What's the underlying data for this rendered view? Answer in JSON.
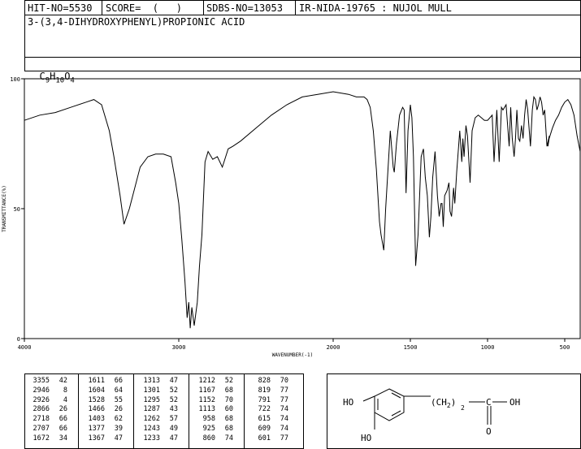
{
  "header": {
    "hit_no": "HIT-NO=5530",
    "score": "SCORE=  (   )",
    "sdbs_no": "SDBS-NO=13053",
    "source": "IR-NIDA-19765 : NUJOL MULL",
    "compound": "3-(3,4-DIHYDROXYPHENYL)PROPIONIC ACID",
    "formula_parts": {
      "c": "C",
      "c_n": "9",
      "h": "H",
      "h_n": "10",
      "o": "O",
      "o_n": "4"
    }
  },
  "chart_data": {
    "type": "line",
    "xlabel": "WAVENUMBER(-1)",
    "ylabel": "TRANSMITTANCE(%)",
    "xlim": [
      4000,
      400
    ],
    "ylim": [
      0,
      100
    ],
    "x_ticks": [
      4000,
      3000,
      2000,
      1500,
      1000,
      500
    ],
    "x_tick_labels": [
      "4000",
      "3000",
      "2000",
      "1500",
      "1000",
      "500"
    ],
    "y_ticks": [
      0,
      50,
      100
    ],
    "y_tick_labels": [
      "0",
      "50",
      "100"
    ],
    "series": [
      {
        "x": [
          4000,
          3900,
          3800,
          3700,
          3600,
          3550,
          3500,
          3450,
          3420,
          3380,
          3355,
          3320,
          3250,
          3200,
          3150,
          3100,
          3050,
          3020,
          3000,
          2980,
          2960,
          2946,
          2935,
          2926,
          2915,
          2900,
          2880,
          2866,
          2850,
          2830,
          2810,
          2780,
          2750,
          2718,
          2707,
          2680,
          2650,
          2600,
          2500,
          2400,
          2300,
          2200,
          2100,
          2000,
          1900,
          1850,
          1800,
          1780,
          1760,
          1740,
          1720,
          1700,
          1690,
          1672,
          1660,
          1640,
          1630,
          1611,
          1604,
          1590,
          1570,
          1550,
          1540,
          1528,
          1515,
          1500,
          1490,
          1480,
          1466,
          1450,
          1430,
          1415,
          1403,
          1390,
          1377,
          1367,
          1355,
          1340,
          1325,
          1313,
          1301,
          1295,
          1287,
          1278,
          1262,
          1250,
          1243,
          1233,
          1220,
          1212,
          1200,
          1190,
          1180,
          1167,
          1160,
          1152,
          1140,
          1130,
          1113,
          1100,
          1080,
          1060,
          1040,
          1020,
          1000,
          985,
          970,
          958,
          940,
          925,
          910,
          900,
          880,
          860,
          850,
          840,
          828,
          819,
          810,
          800,
          791,
          780,
          770,
          760,
          750,
          740,
          722,
          710,
          700,
          690,
          680,
          670,
          660,
          650,
          640,
          630,
          615,
          600,
          609,
          601,
          580,
          560,
          540,
          520,
          500,
          480,
          460,
          440,
          420,
          400
        ],
        "y": [
          84,
          86,
          87,
          89,
          91,
          92,
          90,
          80,
          70,
          55,
          44,
          50,
          66,
          70,
          71,
          71,
          70,
          60,
          52,
          38,
          22,
          8,
          14,
          4,
          12,
          5,
          14,
          28,
          40,
          68,
          72,
          69,
          70,
          66,
          68,
          73,
          74,
          76,
          81,
          86,
          90,
          93,
          94,
          95,
          94,
          93,
          93,
          92,
          89,
          80,
          65,
          45,
          40,
          34,
          50,
          70,
          80,
          66,
          64,
          75,
          86,
          89,
          88,
          56,
          80,
          90,
          85,
          70,
          28,
          40,
          70,
          73,
          62,
          55,
          39,
          47,
          62,
          72,
          55,
          47,
          52,
          52,
          43,
          55,
          57,
          60,
          49,
          47,
          58,
          52,
          64,
          72,
          80,
          68,
          77,
          70,
          82,
          78,
          60,
          80,
          85,
          86,
          85,
          84,
          84,
          85,
          86,
          68,
          88,
          68,
          89,
          88,
          90,
          74,
          89,
          77,
          70,
          77,
          88,
          77,
          76,
          82,
          77,
          86,
          92,
          88,
          74,
          88,
          93,
          92,
          88,
          90,
          93,
          91,
          86,
          88,
          74,
          78,
          74,
          77,
          81,
          84,
          86,
          89,
          91,
          92,
          90,
          86,
          78,
          72
        ]
      }
    ]
  },
  "peak_table": [
    [
      [
        "3355",
        "42"
      ],
      [
        "2946",
        "8"
      ],
      [
        "2926",
        "4"
      ],
      [
        "2866",
        "26"
      ],
      [
        "2718",
        "66"
      ],
      [
        "2707",
        "66"
      ],
      [
        "1672",
        "34"
      ]
    ],
    [
      [
        "1611",
        "66"
      ],
      [
        "1604",
        "64"
      ],
      [
        "1528",
        "55"
      ],
      [
        "1466",
        "26"
      ],
      [
        "1403",
        "62"
      ],
      [
        "1377",
        "39"
      ],
      [
        "1367",
        "47"
      ]
    ],
    [
      [
        "1313",
        "47"
      ],
      [
        "1301",
        "52"
      ],
      [
        "1295",
        "52"
      ],
      [
        "1287",
        "43"
      ],
      [
        "1262",
        "57"
      ],
      [
        "1243",
        "49"
      ],
      [
        "1233",
        "47"
      ]
    ],
    [
      [
        "1212",
        "52"
      ],
      [
        "1167",
        "68"
      ],
      [
        "1152",
        "70"
      ],
      [
        "1113",
        "60"
      ],
      [
        "958",
        "68"
      ],
      [
        "925",
        "68"
      ],
      [
        "860",
        "74"
      ]
    ],
    [
      [
        "828",
        "70"
      ],
      [
        "819",
        "77"
      ],
      [
        "791",
        "77"
      ],
      [
        "722",
        "74"
      ],
      [
        "615",
        "74"
      ],
      [
        "609",
        "74"
      ],
      [
        "601",
        "77"
      ]
    ]
  ],
  "structure": {
    "ho_top": "HO",
    "ho_bottom": "HO",
    "chain": "(CH",
    "chain_sub": "2",
    "chain_close": ")",
    "sub_n": "2",
    "carbon": "C",
    "oh": "OH",
    "oxygen": "O"
  }
}
